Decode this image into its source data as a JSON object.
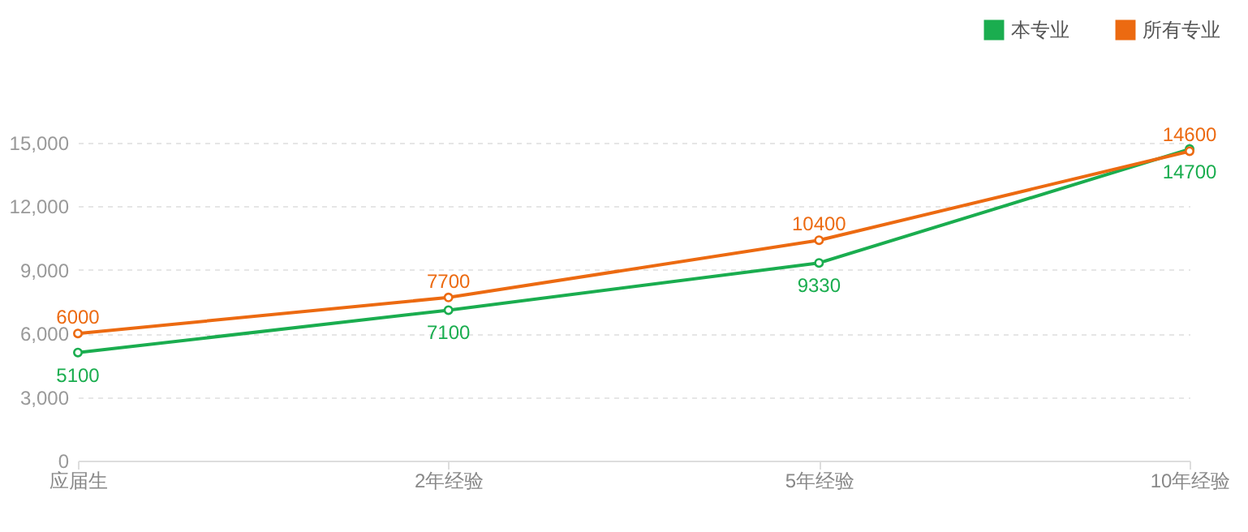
{
  "chart_data": {
    "type": "line",
    "categories": [
      "应届生",
      "2年经验",
      "5年经验",
      "10年经验"
    ],
    "series": [
      {
        "name": "本专业",
        "color": "#1aad4f",
        "values": [
          5100,
          7100,
          9330,
          14700
        ]
      },
      {
        "name": "所有专业",
        "color": "#ec6a11",
        "values": [
          6000,
          7700,
          10400,
          14600
        ]
      }
    ],
    "ylim": [
      0,
      15000
    ],
    "yticks": [
      {
        "value": 0,
        "label": "0"
      },
      {
        "value": 3000,
        "label": "3,000"
      },
      {
        "value": 6000,
        "label": "6,000"
      },
      {
        "value": 9000,
        "label": "9,000"
      },
      {
        "value": 12000,
        "label": "12,000"
      },
      {
        "value": 15000,
        "label": "15,000"
      }
    ],
    "grid": "y",
    "legend": "top right",
    "marker": "circle",
    "line_style": "solid",
    "data_labels": true
  }
}
